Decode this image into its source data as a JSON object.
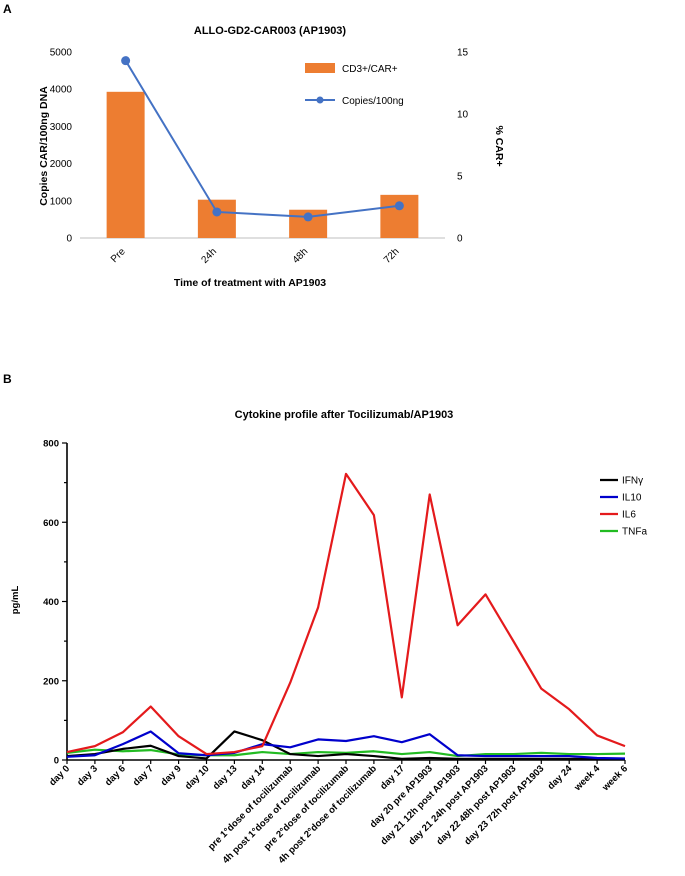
{
  "panels": {
    "a": "A",
    "b": "B"
  },
  "chart_data": [
    {
      "type": "bar+line",
      "title": "ALLO-GD2-CAR003 (AP1903)",
      "xlabel": "Time of treatment with AP1903",
      "ylabel": "Copies CAR/100ng DNA",
      "y2label": "% CAR+",
      "categories": [
        "Pre",
        "24h",
        "48h",
        "72h"
      ],
      "ylim": [
        0,
        5000
      ],
      "y_ticks": [
        "0",
        "1000",
        "2000",
        "3000",
        "4000",
        "5000"
      ],
      "y2lim": [
        0,
        15
      ],
      "y2_ticks": [
        "0",
        "5",
        "10",
        "15"
      ],
      "grid": false,
      "legend_position": "top-right",
      "series": [
        {
          "name": "CD3+/CAR+",
          "kind": "bar",
          "axis": "left",
          "color": "#ED7D31",
          "values": [
            3930,
            1030,
            760,
            1160
          ]
        },
        {
          "name": "Copies/100ng",
          "kind": "line",
          "axis": "right",
          "color": "#4472C4",
          "values": [
            14.3,
            2.1,
            1.7,
            2.6
          ]
        }
      ]
    },
    {
      "type": "line",
      "title": "Cytokine profile after Tocilizumab/AP1903",
      "xlabel": "",
      "ylabel": "pg/mL",
      "categories": [
        "day 0",
        "day 3",
        "day 6",
        "day 7",
        "day 9",
        "day 10",
        "day 13",
        "day 14",
        "pre 1°dose of tocilizumab",
        "4h post 1°dose of tocilizumab",
        "pre 2°dose of tocilizumab",
        "4h post 2°dose of tocilizumab",
        "day 17",
        "day 20 pre AP1903",
        "day 21 12h post AP1903",
        "day 21 24h post AP1903",
        "day 22 48h post AP1903",
        "day 23 72h post AP1903",
        "day 24",
        "week 4",
        "week 6"
      ],
      "ylim": [
        0,
        800
      ],
      "y_ticks": [
        "0",
        "200",
        "400",
        "600",
        "800"
      ],
      "grid": false,
      "legend_position": "top-right",
      "series": [
        {
          "name": "IFNγ",
          "color": "#000000",
          "values": [
            10,
            15,
            28,
            36,
            10,
            4,
            72,
            50,
            15,
            10,
            15,
            10,
            3,
            5,
            3,
            3,
            3,
            3,
            3,
            3,
            3
          ]
        },
        {
          "name": "IL10",
          "color": "#0000CC",
          "values": [
            8,
            12,
            40,
            72,
            17,
            12,
            18,
            40,
            32,
            52,
            48,
            60,
            45,
            65,
            12,
            10,
            10,
            10,
            10,
            5,
            4
          ]
        },
        {
          "name": "IL6",
          "color": "#E41A1C",
          "values": [
            20,
            35,
            70,
            135,
            60,
            15,
            20,
            35,
            195,
            385,
            722,
            618,
            158,
            670,
            340,
            418,
            300,
            180,
            128,
            62,
            35
          ]
        },
        {
          "name": "TNFa",
          "color": "#22BB22",
          "values": [
            18,
            26,
            22,
            25,
            14,
            12,
            12,
            20,
            15,
            20,
            18,
            22,
            15,
            20,
            10,
            15,
            15,
            18,
            15,
            15,
            16
          ]
        }
      ]
    }
  ]
}
